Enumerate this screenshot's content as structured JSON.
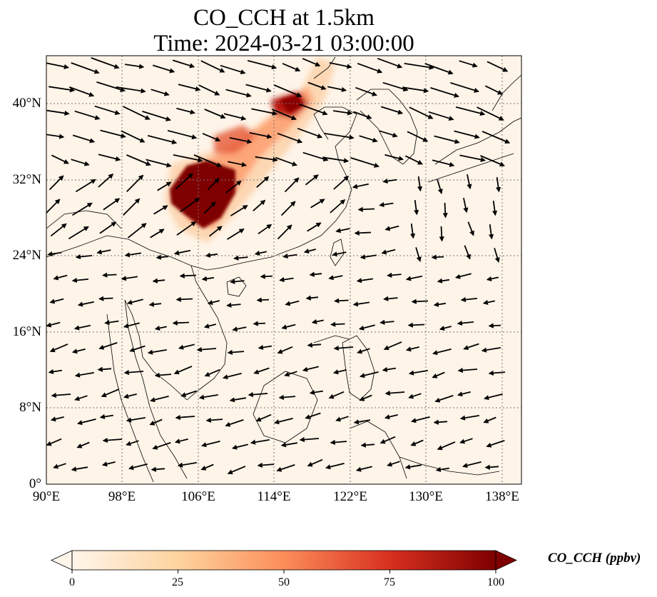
{
  "figure": {
    "title_line1": "CO_CCH at 1.5km",
    "title_line2": "Time: 2024-03-21 03:00:00"
  },
  "map": {
    "lon_range": [
      90,
      140
    ],
    "lat_range": [
      0,
      45
    ],
    "x_ticks": [
      "90°E",
      "98°E",
      "106°E",
      "114°E",
      "122°E",
      "130°E",
      "138°E"
    ],
    "y_ticks": [
      "0°",
      "8°N",
      "16°N",
      "24°N",
      "32°N",
      "40°N"
    ],
    "gridlines": "dotted",
    "field": "CO_CCH concentration with wind vectors",
    "high_concentration_region": "Sichuan Basin to North China Plain"
  },
  "colorbar": {
    "label": "CO_CCH (ppbv)",
    "ticks": [
      "0",
      "25",
      "50",
      "75",
      "100"
    ],
    "range": [
      0,
      100
    ],
    "extend": "both",
    "colormap": [
      "#fff5eb",
      "#fdd49e",
      "#fc8d59",
      "#d7301f",
      "#7f0000"
    ]
  }
}
